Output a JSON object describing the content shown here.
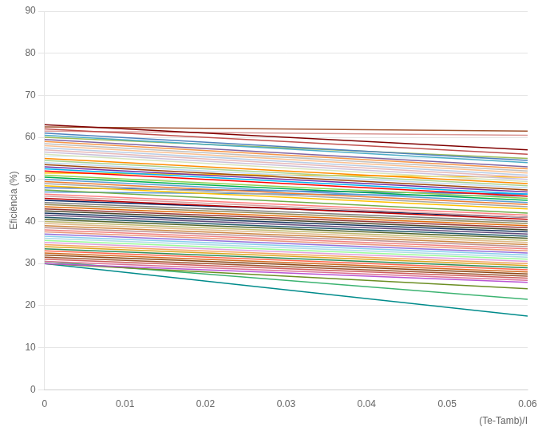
{
  "chart_data": {
    "type": "line",
    "xlabel": "(Te-Tamb)/I",
    "ylabel": "Eficiência (%)",
    "x": [
      0,
      0.06
    ],
    "xlim": [
      0,
      0.06
    ],
    "ylim": [
      0,
      90
    ],
    "xticks": [
      0,
      0.01,
      0.02,
      0.03,
      0.04,
      0.05,
      0.06
    ],
    "yticks": [
      0,
      10,
      20,
      30,
      40,
      50,
      60,
      70,
      80,
      90
    ],
    "grid": "y",
    "series": [
      {
        "color": "#800000",
        "values": [
          63.0,
          57.0
        ]
      },
      {
        "color": "#A0522D",
        "values": [
          62.5,
          61.5
        ]
      },
      {
        "color": "#C0504D",
        "values": [
          62.0,
          56.0
        ]
      },
      {
        "color": "#D99694",
        "values": [
          61.5,
          60.5
        ]
      },
      {
        "color": "#4F81BD",
        "values": [
          61.0,
          54.5
        ]
      },
      {
        "color": "#4BACC6",
        "values": [
          60.5,
          54.0
        ]
      },
      {
        "color": "#9BBB59",
        "values": [
          60.0,
          55.0
        ]
      },
      {
        "color": "#8064A2",
        "values": [
          59.5,
          53.0
        ]
      },
      {
        "color": "#F79646",
        "values": [
          59.0,
          52.5
        ]
      },
      {
        "color": "#C0C0C0",
        "values": [
          58.5,
          52.0
        ]
      },
      {
        "color": "#FABF8F",
        "values": [
          58.0,
          51.5
        ]
      },
      {
        "color": "#B8CCE4",
        "values": [
          57.5,
          51.0
        ]
      },
      {
        "color": "#E6B8B7",
        "values": [
          57.0,
          50.5
        ]
      },
      {
        "color": "#CCC0DA",
        "values": [
          56.5,
          50.0
        ]
      },
      {
        "color": "#D7E4BC",
        "values": [
          56.0,
          49.5
        ]
      },
      {
        "color": "#DAEEF3",
        "values": [
          55.5,
          55.0
        ]
      },
      {
        "color": "#FF8C00",
        "values": [
          55.0,
          49.0
        ]
      },
      {
        "color": "#A9D18E",
        "values": [
          54.5,
          48.5
        ]
      },
      {
        "color": "#BDD7EE",
        "values": [
          54.0,
          48.0
        ]
      },
      {
        "color": "#9E480E",
        "values": [
          53.5,
          47.5
        ]
      },
      {
        "color": "#7030A0",
        "values": [
          53.0,
          47.0
        ]
      },
      {
        "color": "#00B0F0",
        "values": [
          52.5,
          46.5
        ]
      },
      {
        "color": "#FF0000",
        "values": [
          52.0,
          46.0
        ]
      },
      {
        "color": "#FFC000",
        "values": [
          51.5,
          50.5
        ]
      },
      {
        "color": "#92D050",
        "values": [
          51.0,
          45.5
        ]
      },
      {
        "color": "#00B050",
        "values": [
          50.5,
          45.0
        ]
      },
      {
        "color": "#5B9BD5",
        "values": [
          50.0,
          44.5
        ]
      },
      {
        "color": "#ED7D31",
        "values": [
          49.5,
          44.0
        ]
      },
      {
        "color": "#A5A5A5",
        "values": [
          49.0,
          43.5
        ]
      },
      {
        "color": "#FFC000",
        "values": [
          48.5,
          43.0
        ]
      },
      {
        "color": "#4472C4",
        "values": [
          48.0,
          46.5
        ]
      },
      {
        "color": "#70AD47",
        "values": [
          47.5,
          42.0
        ]
      },
      {
        "color": "#5B9BD5",
        "values": [
          47.0,
          46.0
        ]
      },
      {
        "color": "#FF7F7F",
        "values": [
          46.5,
          41.5
        ]
      },
      {
        "color": "#D4A0A0",
        "values": [
          46.0,
          41.0
        ]
      },
      {
        "color": "#C00000",
        "values": [
          45.5,
          40.5
        ]
      },
      {
        "color": "#002060",
        "values": [
          45.0,
          41.0
        ]
      },
      {
        "color": "#7F7F7F",
        "values": [
          44.5,
          40.0
        ]
      },
      {
        "color": "#948A54",
        "values": [
          44.0,
          39.5
        ]
      },
      {
        "color": "#E26B0A",
        "values": [
          43.5,
          39.0
        ]
      },
      {
        "color": "#953735",
        "values": [
          43.0,
          38.5
        ]
      },
      {
        "color": "#494429",
        "values": [
          42.5,
          38.0
        ]
      },
      {
        "color": "#17375E",
        "values": [
          42.0,
          37.5
        ]
      },
      {
        "color": "#604A7B",
        "values": [
          41.5,
          37.0
        ]
      },
      {
        "color": "#215868",
        "values": [
          41.0,
          36.5
        ]
      },
      {
        "color": "#4F6228",
        "values": [
          40.5,
          36.0
        ]
      },
      {
        "color": "#BDB76B",
        "values": [
          40.0,
          35.5
        ]
      },
      {
        "color": "#DEB887",
        "values": [
          39.5,
          35.0
        ]
      },
      {
        "color": "#CD853F",
        "values": [
          39.0,
          34.5
        ]
      },
      {
        "color": "#BC8F8F",
        "values": [
          38.5,
          34.0
        ]
      },
      {
        "color": "#F08080",
        "values": [
          38.0,
          33.5
        ]
      },
      {
        "color": "#E9967A",
        "values": [
          37.5,
          33.0
        ]
      },
      {
        "color": "#9370DB",
        "values": [
          37.0,
          32.5
        ]
      },
      {
        "color": "#87CEEB",
        "values": [
          36.5,
          32.0
        ]
      },
      {
        "color": "#ADD8E6",
        "values": [
          36.0,
          31.5
        ]
      },
      {
        "color": "#98FB98",
        "values": [
          35.5,
          31.0
        ]
      },
      {
        "color": "#DDA0DD",
        "values": [
          35.0,
          30.5
        ]
      },
      {
        "color": "#F4A460",
        "values": [
          34.5,
          30.0
        ]
      },
      {
        "color": "#DAA520",
        "values": [
          34.0,
          29.5
        ]
      },
      {
        "color": "#2E8B57",
        "values": [
          33.5,
          29.0
        ]
      },
      {
        "color": "#FF6347",
        "values": [
          33.0,
          28.5
        ]
      },
      {
        "color": "#D2691E",
        "values": [
          32.5,
          28.0
        ]
      },
      {
        "color": "#8B4513",
        "values": [
          32.0,
          27.5
        ]
      },
      {
        "color": "#A0522D",
        "values": [
          31.5,
          27.0
        ]
      },
      {
        "color": "#CD5C5C",
        "values": [
          31.0,
          26.5
        ]
      },
      {
        "color": "#DB7093",
        "values": [
          30.5,
          26.0
        ]
      },
      {
        "color": "#BA55D3",
        "values": [
          30.0,
          25.5
        ]
      },
      {
        "color": "#6B8E23",
        "values": [
          30.0,
          24.0
        ]
      },
      {
        "color": "#3CB371",
        "values": [
          30.5,
          21.5
        ]
      },
      {
        "color": "#008B8B",
        "values": [
          30.0,
          17.5
        ]
      }
    ]
  }
}
